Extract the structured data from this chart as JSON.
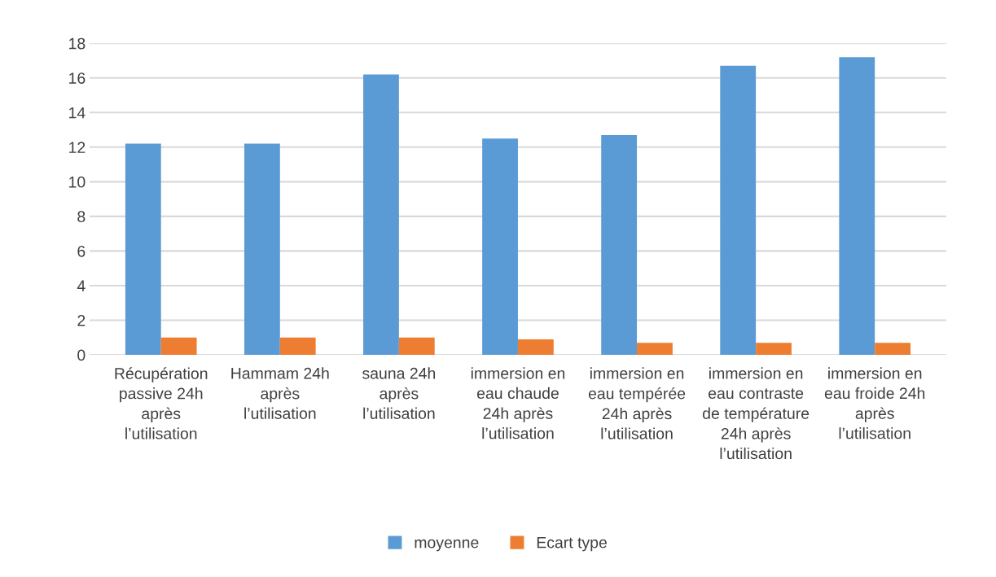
{
  "chart_data": {
    "type": "bar",
    "categories": [
      "Récupération passive 24h après l’utilisation",
      "Hammam 24h après l’utilisation",
      "sauna 24h après l’utilisation",
      "immersion en eau chaude 24h après l’utilisation",
      "immersion en eau tempérée 24h après l’utilisation",
      "immersion en eau contraste de température 24h après l’utilisation",
      "immersion en eau froide 24h après l’utilisation"
    ],
    "series": [
      {
        "name": "moyenne",
        "color": "#5b9bd5",
        "values": [
          12.2,
          12.2,
          16.2,
          12.5,
          12.7,
          16.7,
          17.2
        ]
      },
      {
        "name": "Ecart type",
        "color": "#ed7d31",
        "values": [
          1.0,
          1.0,
          1.0,
          0.9,
          0.7,
          0.7,
          0.7
        ]
      }
    ],
    "ylim": [
      0,
      18
    ],
    "yticks": [
      0,
      2,
      4,
      6,
      8,
      10,
      12,
      14,
      16,
      18
    ],
    "grid": "y",
    "legend": "bottom"
  }
}
